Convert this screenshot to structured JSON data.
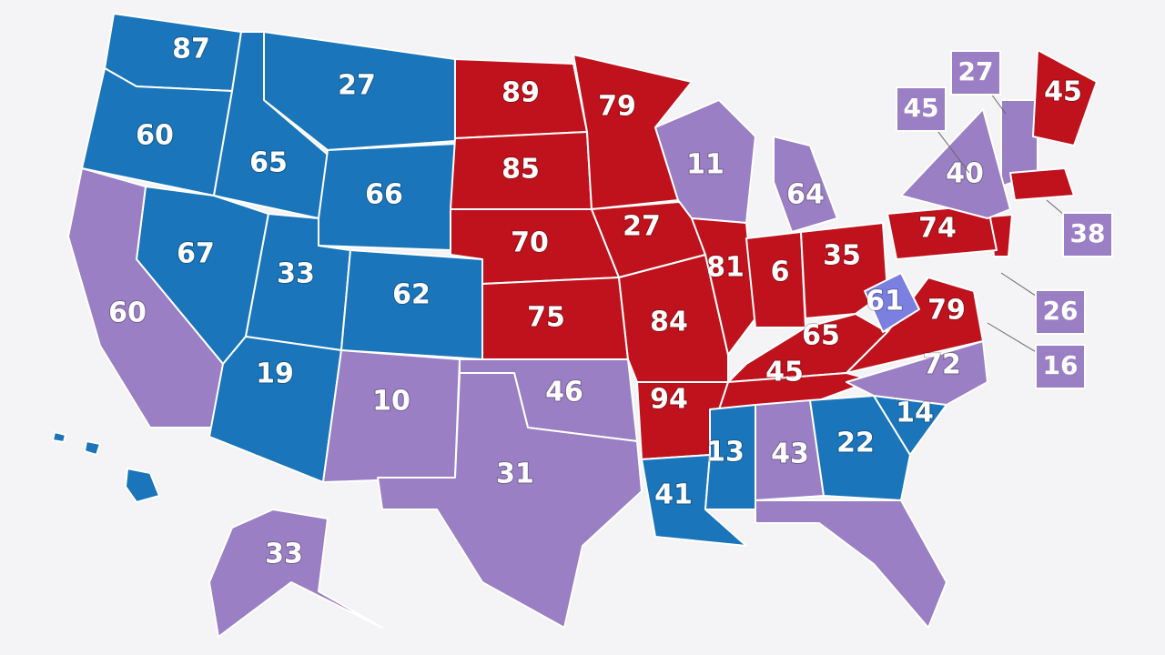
{
  "states": [
    {
      "label": 87,
      "color": "#1a75bb"
    },
    {
      "label": 60,
      "color": "#1a75bb"
    },
    {
      "label": 65,
      "color": "#1a75bb"
    },
    {
      "label": 27,
      "color": "#1a75bb"
    },
    {
      "label": 66,
      "color": "#1a75bb"
    },
    {
      "label": 67,
      "color": "#1a75bb"
    },
    {
      "label": 60,
      "color": "#9b7fc4"
    },
    {
      "label": 33,
      "color": "#1a75bb"
    },
    {
      "label": 62,
      "color": "#1a75bb"
    },
    {
      "label": 19,
      "color": "#1a75bb"
    },
    {
      "label": 10,
      "color": "#9b7fc4"
    },
    {
      "label": 89,
      "color": "#c0121c"
    },
    {
      "label": 85,
      "color": "#c0121c"
    },
    {
      "label": 70,
      "color": "#c0121c"
    },
    {
      "label": 75,
      "color": "#c0121c"
    },
    {
      "label": 46,
      "color": "#9b7fc4"
    },
    {
      "label": 31,
      "color": "#9b7fc4"
    },
    {
      "label": 79,
      "color": "#c0121c"
    },
    {
      "label": 27,
      "color": "#c0121c"
    },
    {
      "label": 84,
      "color": "#c0121c"
    },
    {
      "label": 94,
      "color": "#c0121c"
    },
    {
      "label": 41,
      "color": "#1a75bb"
    },
    {
      "label": 11,
      "color": "#9b7fc4"
    },
    {
      "label": 81,
      "color": "#c0121c"
    },
    {
      "label": 64,
      "color": "#9b7fc4"
    },
    {
      "label": 6,
      "color": "#c0121c"
    },
    {
      "label": 35,
      "color": "#c0121c"
    },
    {
      "label": 65,
      "color": "#c0121c"
    },
    {
      "label": 45,
      "color": "#c0121c"
    },
    {
      "label": 13,
      "color": "#1a75bb"
    },
    {
      "label": 43,
      "color": "#9b7fc4"
    },
    {
      "label": 22,
      "color": "#1a75bb"
    },
    {
      "label": 14,
      "color": "#1a75bb"
    },
    {
      "label": 72,
      "color": "#9b7fc4"
    },
    {
      "label": 79,
      "color": "#c0121c"
    },
    {
      "label": 61,
      "color": "#7b7fe0"
    },
    {
      "label": 74,
      "color": "#c0121c"
    },
    {
      "label": 40,
      "color": "#9b7fc4"
    },
    {
      "label": 45,
      "color": "#c0121c"
    },
    {
      "label": 33,
      "color": "#9b7fc4"
    }
  ],
  "callouts": [
    {
      "label": 27
    },
    {
      "label": 45
    },
    {
      "label": 38
    },
    {
      "label": 26
    },
    {
      "label": 16
    }
  ],
  "callout_color": "#9b7fc4"
}
